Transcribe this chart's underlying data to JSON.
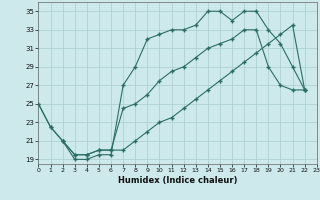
{
  "line1_x": [
    0,
    1,
    2,
    3,
    4,
    5,
    6,
    7,
    8,
    9,
    10,
    11,
    12,
    13,
    14,
    15,
    16,
    17,
    18,
    19,
    20,
    21,
    22
  ],
  "line1_y": [
    25,
    22.5,
    21,
    19,
    19,
    19.5,
    19.5,
    27,
    29,
    32,
    32.5,
    33,
    33,
    33.5,
    35,
    35,
    34,
    35,
    35,
    33,
    31.5,
    29,
    26.5
  ],
  "line2_x": [
    0,
    1,
    2,
    3,
    4,
    5,
    6,
    7,
    8,
    9,
    10,
    11,
    12,
    13,
    14,
    15,
    16,
    17,
    18,
    19,
    20,
    21,
    22
  ],
  "line2_y": [
    25,
    22.5,
    21,
    19.5,
    19.5,
    20,
    20,
    24.5,
    25,
    26,
    27.5,
    28.5,
    29,
    30,
    31,
    31.5,
    32,
    33,
    33,
    29,
    27,
    26.5,
    26.5
  ],
  "line3_x": [
    2,
    3,
    4,
    5,
    6,
    7,
    8,
    9,
    10,
    11,
    12,
    13,
    14,
    15,
    16,
    17,
    18,
    19,
    20,
    21,
    22
  ],
  "line3_y": [
    21,
    19.5,
    19.5,
    20,
    20,
    20,
    21,
    22,
    23,
    23.5,
    24.5,
    25.5,
    26.5,
    27.5,
    28.5,
    29.5,
    30.5,
    31.5,
    32.5,
    33.5,
    26.5
  ],
  "color": "#2a6e62",
  "bg_color": "#cde9ec",
  "grid_color": "#a8cdd0",
  "xlabel": "Humidex (Indice chaleur)",
  "xlim": [
    0,
    23
  ],
  "ylim": [
    18.5,
    36
  ],
  "yticks": [
    19,
    21,
    23,
    25,
    27,
    29,
    31,
    33,
    35
  ],
  "xticks": [
    0,
    1,
    2,
    3,
    4,
    5,
    6,
    7,
    8,
    9,
    10,
    11,
    12,
    13,
    14,
    15,
    16,
    17,
    18,
    19,
    20,
    21,
    22,
    23
  ],
  "marker": "+",
  "markersize": 3.5,
  "linewidth": 0.8
}
